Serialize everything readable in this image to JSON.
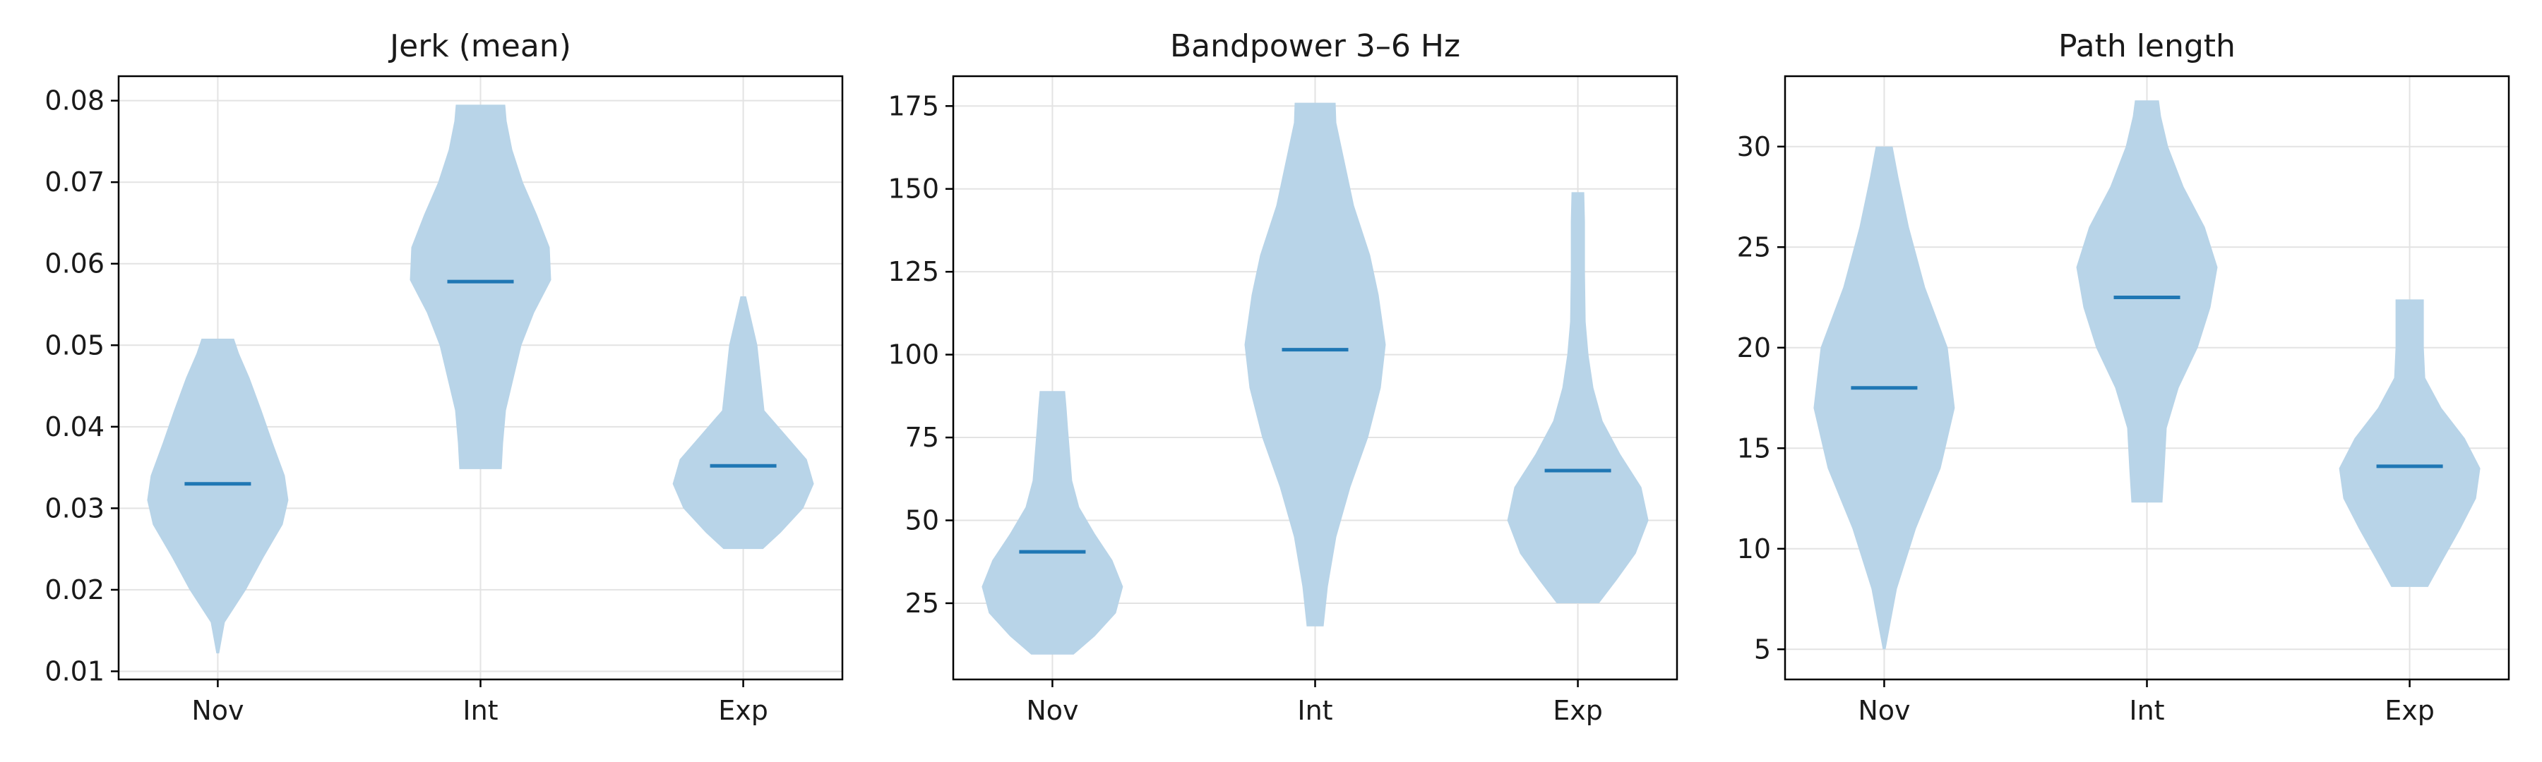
{
  "colors": {
    "violin_fill": "#b8d4e8",
    "median_line": "#1f77b4",
    "grid": "#e3e3e3",
    "axis": "#000000"
  },
  "chart_data": [
    {
      "type": "violin",
      "title": "Jerk (mean)",
      "categories": [
        "Nov",
        "Int",
        "Exp"
      ],
      "ylim": [
        0.009,
        0.083
      ],
      "yticks": [
        0.01,
        0.02,
        0.03,
        0.04,
        0.05,
        0.06,
        0.07,
        0.08
      ],
      "ytick_labels": [
        "0.01",
        "0.02",
        "0.03",
        "0.04",
        "0.05",
        "0.06",
        "0.07",
        "0.08"
      ],
      "grid": true,
      "violins": [
        {
          "category": "Nov",
          "median": 0.033,
          "min": 0.0122,
          "max": 0.0508,
          "profile": [
            [
              0.0122,
              0.02
            ],
            [
              0.016,
              0.1
            ],
            [
              0.02,
              0.4
            ],
            [
              0.024,
              0.65
            ],
            [
              0.028,
              0.92
            ],
            [
              0.031,
              1.0
            ],
            [
              0.034,
              0.95
            ],
            [
              0.038,
              0.78
            ],
            [
              0.042,
              0.62
            ],
            [
              0.046,
              0.45
            ],
            [
              0.049,
              0.3
            ],
            [
              0.0508,
              0.23
            ]
          ]
        },
        {
          "category": "Int",
          "median": 0.0578,
          "min": 0.0348,
          "max": 0.0795,
          "profile": [
            [
              0.0348,
              0.3
            ],
            [
              0.038,
              0.32
            ],
            [
              0.042,
              0.36
            ],
            [
              0.046,
              0.47
            ],
            [
              0.05,
              0.58
            ],
            [
              0.054,
              0.76
            ],
            [
              0.058,
              1.0
            ],
            [
              0.062,
              0.98
            ],
            [
              0.066,
              0.8
            ],
            [
              0.07,
              0.6
            ],
            [
              0.074,
              0.45
            ],
            [
              0.0775,
              0.37
            ],
            [
              0.0795,
              0.35
            ]
          ]
        },
        {
          "category": "Exp",
          "median": 0.0352,
          "min": 0.025,
          "max": 0.056,
          "profile": [
            [
              0.025,
              0.28
            ],
            [
              0.027,
              0.53
            ],
            [
              0.03,
              0.85
            ],
            [
              0.033,
              1.0
            ],
            [
              0.036,
              0.9
            ],
            [
              0.039,
              0.6
            ],
            [
              0.042,
              0.3
            ],
            [
              0.046,
              0.25
            ],
            [
              0.05,
              0.2
            ],
            [
              0.053,
              0.12
            ],
            [
              0.056,
              0.04
            ]
          ]
        }
      ]
    },
    {
      "type": "violin",
      "title": "Bandpower 3–6 Hz",
      "categories": [
        "Nov",
        "Int",
        "Exp"
      ],
      "ylim": [
        2,
        184
      ],
      "yticks": [
        25,
        50,
        75,
        100,
        125,
        150,
        175
      ],
      "ytick_labels": [
        "25",
        "50",
        "75",
        "100",
        "125",
        "150",
        "175"
      ],
      "grid": true,
      "violins": [
        {
          "category": "Nov",
          "median": 40.5,
          "min": 9.5,
          "max": 89,
          "profile": [
            [
              9.5,
              0.3
            ],
            [
              15,
              0.6
            ],
            [
              22,
              0.9
            ],
            [
              30,
              1.0
            ],
            [
              38,
              0.85
            ],
            [
              46,
              0.6
            ],
            [
              54,
              0.38
            ],
            [
              62,
              0.28
            ],
            [
              70,
              0.25
            ],
            [
              78,
              0.22
            ],
            [
              84,
              0.2
            ],
            [
              89,
              0.18
            ]
          ]
        },
        {
          "category": "Int",
          "median": 101.5,
          "min": 18,
          "max": 176,
          "profile": [
            [
              18,
              0.12
            ],
            [
              30,
              0.18
            ],
            [
              45,
              0.3
            ],
            [
              60,
              0.5
            ],
            [
              75,
              0.75
            ],
            [
              90,
              0.93
            ],
            [
              103,
              1.0
            ],
            [
              118,
              0.9
            ],
            [
              130,
              0.78
            ],
            [
              145,
              0.55
            ],
            [
              160,
              0.4
            ],
            [
              170,
              0.3
            ],
            [
              176,
              0.29
            ]
          ]
        },
        {
          "category": "Exp",
          "median": 65,
          "min": 25,
          "max": 149,
          "profile": [
            [
              25,
              0.3
            ],
            [
              32,
              0.55
            ],
            [
              40,
              0.82
            ],
            [
              50,
              1.0
            ],
            [
              60,
              0.9
            ],
            [
              70,
              0.6
            ],
            [
              80,
              0.35
            ],
            [
              90,
              0.22
            ],
            [
              100,
              0.15
            ],
            [
              110,
              0.11
            ],
            [
              125,
              0.1
            ],
            [
              140,
              0.1
            ],
            [
              149,
              0.09
            ]
          ]
        }
      ]
    },
    {
      "type": "violin",
      "title": "Path length",
      "categories": [
        "Nov",
        "Int",
        "Exp"
      ],
      "ylim": [
        3.5,
        33.5
      ],
      "yticks": [
        5,
        10,
        15,
        20,
        25,
        30
      ],
      "ytick_labels": [
        "5",
        "10",
        "15",
        "20",
        "25",
        "30"
      ],
      "grid": true,
      "violins": [
        {
          "category": "Nov",
          "median": 18,
          "min": 5,
          "max": 30,
          "profile": [
            [
              5,
              0.02
            ],
            [
              8,
              0.18
            ],
            [
              11,
              0.45
            ],
            [
              14,
              0.8
            ],
            [
              17,
              1.0
            ],
            [
              20,
              0.9
            ],
            [
              23,
              0.58
            ],
            [
              26,
              0.35
            ],
            [
              28.5,
              0.2
            ],
            [
              30,
              0.12
            ]
          ]
        },
        {
          "category": "Int",
          "median": 22.5,
          "min": 12.3,
          "max": 32.3,
          "profile": [
            [
              12.3,
              0.22
            ],
            [
              14,
              0.25
            ],
            [
              16,
              0.28
            ],
            [
              18,
              0.45
            ],
            [
              20,
              0.72
            ],
            [
              22,
              0.9
            ],
            [
              24,
              1.0
            ],
            [
              26,
              0.82
            ],
            [
              28,
              0.52
            ],
            [
              30,
              0.3
            ],
            [
              31.5,
              0.2
            ],
            [
              32.3,
              0.17
            ]
          ]
        },
        {
          "category": "Exp",
          "median": 14.1,
          "min": 8.1,
          "max": 22.4,
          "profile": [
            [
              8.1,
              0.26
            ],
            [
              9.5,
              0.48
            ],
            [
              11,
              0.72
            ],
            [
              12.5,
              0.94
            ],
            [
              14,
              1.0
            ],
            [
              15.5,
              0.78
            ],
            [
              17,
              0.45
            ],
            [
              18.5,
              0.22
            ],
            [
              20,
              0.2
            ],
            [
              21.5,
              0.2
            ],
            [
              22.4,
              0.2
            ]
          ]
        }
      ]
    }
  ]
}
